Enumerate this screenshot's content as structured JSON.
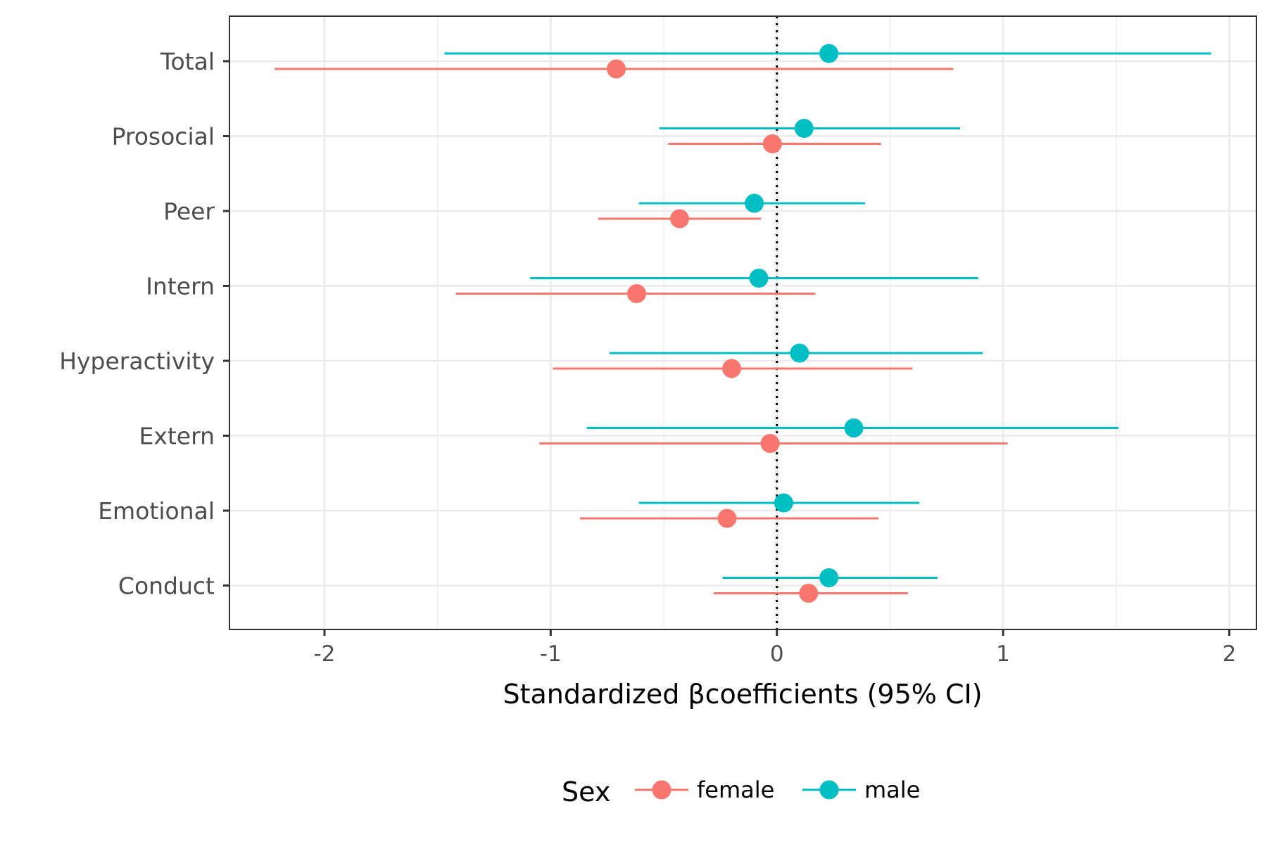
{
  "chart_data": {
    "type": "scatter",
    "subtype": "forest-plot",
    "title": "",
    "xlabel": "Standardized βcoefficients (95% CI)",
    "ylabel": "",
    "xlim": [
      -2.42,
      2.12
    ],
    "xticks": [
      -2,
      -1,
      0,
      1,
      2
    ],
    "xtick_labels": [
      "-2",
      "-1",
      "0",
      "1",
      "2"
    ],
    "reference_line": 0,
    "grid": true,
    "categories": [
      "Total",
      "Prosocial",
      "Peer",
      "Intern",
      "Hyperactivity",
      "Extern",
      "Emotional",
      "Conduct"
    ],
    "legend": {
      "title": "Sex",
      "position": "bottom"
    },
    "series": [
      {
        "name": "female",
        "color": "#F8766D",
        "estimates": [
          -0.71,
          -0.02,
          -0.43,
          -0.62,
          -0.2,
          -0.03,
          -0.22,
          0.14
        ],
        "ci_low": [
          -2.22,
          -0.48,
          -0.79,
          -1.42,
          -0.99,
          -1.05,
          -0.87,
          -0.28
        ],
        "ci_high": [
          0.78,
          0.46,
          -0.07,
          0.17,
          0.6,
          1.02,
          0.45,
          0.58
        ]
      },
      {
        "name": "male",
        "color": "#00BFC4",
        "estimates": [
          0.23,
          0.12,
          -0.1,
          -0.08,
          0.1,
          0.34,
          0.03,
          0.23
        ],
        "ci_low": [
          -1.47,
          -0.52,
          -0.61,
          -1.09,
          -0.74,
          -0.84,
          -0.61,
          -0.24
        ],
        "ci_high": [
          1.92,
          0.81,
          0.39,
          0.89,
          0.91,
          1.51,
          0.63,
          0.71
        ]
      }
    ]
  }
}
